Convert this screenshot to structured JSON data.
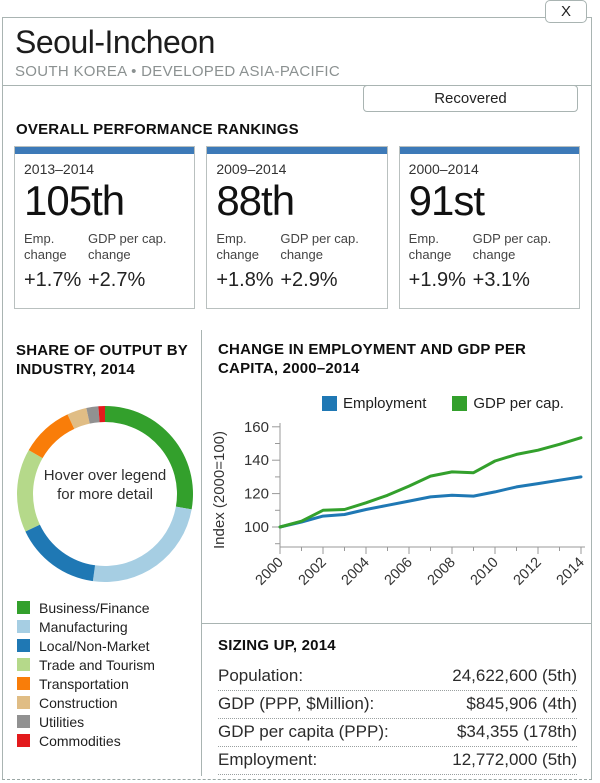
{
  "window": {
    "close_label": "X"
  },
  "header": {
    "title": "Seoul-Incheon",
    "subtitle": "SOUTH KOREA • DEVELOPED ASIA-PACIFIC",
    "status_label": "Recovered"
  },
  "rankings": {
    "heading": "OVERALL PERFORMANCE RANKINGS",
    "accent_color": "#3d7ab8",
    "cards": [
      {
        "period": "2013–2014",
        "rank": "105th",
        "emp_label": "Emp. change",
        "gdp_label": "GDP per cap. change",
        "emp_change": "+1.7%",
        "gdp_change": "+2.7%"
      },
      {
        "period": "2009–2014",
        "rank": "88th",
        "emp_label": "Emp. change",
        "gdp_label": "GDP per cap. change",
        "emp_change": "+1.8%",
        "gdp_change": "+2.9%"
      },
      {
        "period": "2000–2014",
        "rank": "91st",
        "emp_label": "Emp. change",
        "gdp_label": "GDP per cap. change",
        "emp_change": "+1.9%",
        "gdp_change": "+3.1%"
      }
    ]
  },
  "industry": {
    "heading": "SHARE OF OUTPUT BY INDUSTRY, 2014",
    "center_note": "Hover over legend for more detail"
  },
  "chart_data": [
    {
      "type": "pie",
      "donut": true,
      "title": "SHARE OF OUTPUT BY INDUSTRY, 2014",
      "labels": [
        "Business/Finance",
        "Manufacturing",
        "Local/Non-Market",
        "Trade and Tourism",
        "Transportation",
        "Construction",
        "Utilities",
        "Commodities"
      ],
      "values": [
        27.8,
        24.4,
        15.8,
        15.3,
        9.7,
        3.6,
        2.2,
        1.2
      ],
      "colors": [
        "#33a02c",
        "#a6cee3",
        "#1f78b4",
        "#b5d98a",
        "#f97d09",
        "#e0bd85",
        "#919191",
        "#e31a1c"
      ],
      "center_text": "Hover over legend for more detail",
      "legend_position": "bottom"
    },
    {
      "type": "line",
      "title": "CHANGE IN EMPLOYMENT AND GDP PER CAPITA, 2000–2014",
      "x": [
        2000,
        2001,
        2002,
        2003,
        2004,
        2005,
        2006,
        2007,
        2008,
        2009,
        2010,
        2011,
        2012,
        2013,
        2014
      ],
      "series": [
        {
          "name": "Employment",
          "color": "#1f78b4",
          "values": [
            100,
            103,
            106.5,
            107.5,
            110.5,
            113,
            115.5,
            118,
            119,
            118.5,
            121,
            124,
            126,
            128,
            130
          ]
        },
        {
          "name": "GDP per cap.",
          "color": "#33a02c",
          "values": [
            100,
            103.5,
            110,
            110.5,
            114.5,
            119,
            124.5,
            130.5,
            133,
            132.5,
            139.5,
            143.5,
            146,
            149.5,
            153.5
          ]
        }
      ],
      "xlabel": "",
      "ylabel": "Index (2000=100)",
      "yticks": [
        100,
        120,
        140,
        160
      ],
      "yticks_minor": [
        90,
        110,
        130,
        150
      ],
      "xticks": [
        2000,
        2002,
        2004,
        2006,
        2008,
        2010,
        2012,
        2014
      ],
      "ylim": [
        88,
        163
      ],
      "grid": false,
      "legend_position": "top"
    }
  ],
  "sizing": {
    "heading": "SIZING UP, 2014",
    "rows": [
      {
        "label": "Population:",
        "value": "24,622,600 (5th)"
      },
      {
        "label": "GDP (PPP, $Million):",
        "value": "$845,906 (4th)"
      },
      {
        "label": "GDP per capita (PPP):",
        "value": "$34,355 (178th)"
      },
      {
        "label": "Employment:",
        "value": "12,772,000 (5th)"
      }
    ]
  }
}
